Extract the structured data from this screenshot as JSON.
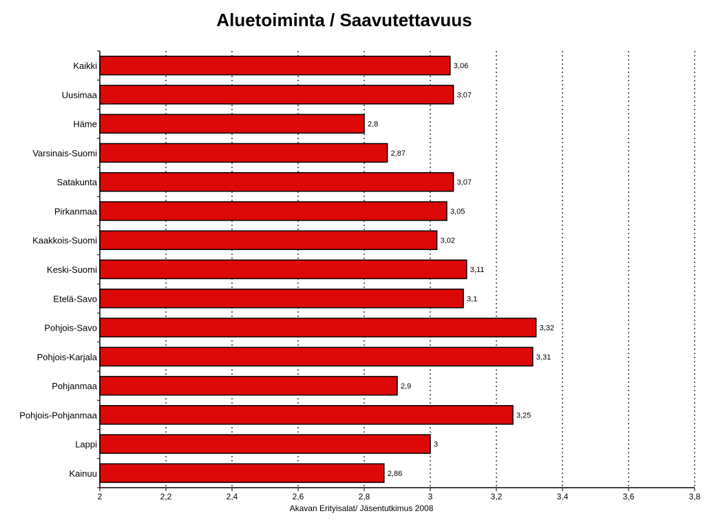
{
  "chart_data": {
    "type": "bar",
    "orientation": "horizontal",
    "title": "Aluetoiminta / Saavutettavuus",
    "footnote": "Akavan Erityisalat/ Jäsentutkimus 2008",
    "categories": [
      "Kaikki",
      "Uusimaa",
      "Häme",
      "Varsinais-Suomi",
      "Satakunta",
      "Pirkanmaa",
      "Kaakkois-Suomi",
      "Keski-Suomi",
      "Etelä-Savo",
      "Pohjois-Savo",
      "Pohjois-Karjala",
      "Pohjanmaa",
      "Pohjois-Pohjanmaa",
      "Lappi",
      "Kainuu"
    ],
    "values": [
      3.06,
      3.07,
      2.8,
      2.87,
      3.07,
      3.05,
      3.02,
      3.11,
      3.1,
      3.32,
      3.31,
      2.9,
      3.25,
      3.0,
      2.86
    ],
    "value_labels": [
      "3,06",
      "3,07",
      "2,8",
      "2,87",
      "3,07",
      "3,05",
      "3,02",
      "3,11",
      "3,1",
      "3,32",
      "3,31",
      "2,9",
      "3,25",
      "3",
      "2,86"
    ],
    "xlim": [
      2,
      3.8
    ],
    "xticks": [
      2,
      2.2,
      2.4,
      2.6,
      2.8,
      3,
      3.2,
      3.4,
      3.6,
      3.8
    ],
    "xtick_labels": [
      "2",
      "2,2",
      "2,4",
      "2,6",
      "2,8",
      "3",
      "3,2",
      "3,4",
      "3,6",
      "3,8"
    ],
    "grid": "vertical-dotted",
    "bar_color": "#dd0808",
    "bar_edge_color": "#000000"
  }
}
